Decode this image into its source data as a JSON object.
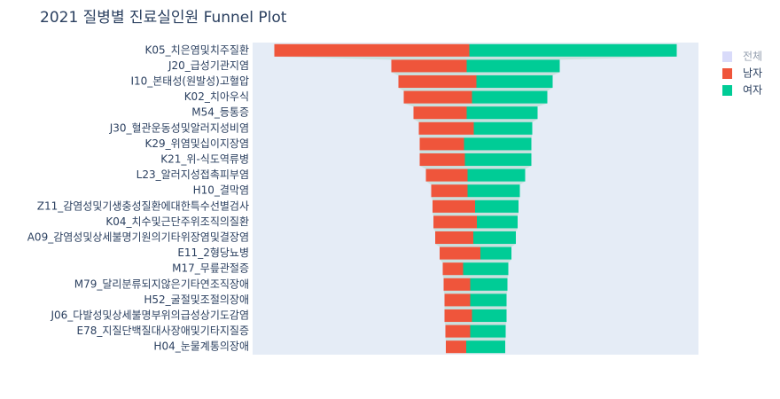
{
  "chart_data": {
    "type": "funnel",
    "title": "2021 질병별 진료실인원 Funnel Plot",
    "categories": [
      "K05_치은염및치주질환",
      "J20_급성기관지염",
      "I10_본태성(원발성)고혈압",
      "K02_치아우식",
      "M54_등통증",
      "J30_혈관운동성및알러지성비염",
      "K29_위염및십이지장염",
      "K21_위-식도역류병",
      "L23_알러지성접촉피부염",
      "H10_결막염",
      "Z11_감염성및기생충성질환에대한특수선별검사",
      "K04_치수및근단주위조직의질환",
      "A09_감염성및상세불명기원의기타위장염및결장염",
      "E11_2형당뇨병",
      "M17_무릎관절증",
      "M79_달리분류되지않은기타연조직장애",
      "H52_굴절및조절의장애",
      "J06_다발성및상세불명부위의급성상기도감염",
      "E78_지질단백질대사장애및기타지질증",
      "H04_눈물계통의장애"
    ],
    "series": [
      {
        "name": "전체",
        "color": "#b3b8f5",
        "visible": "legendonly"
      },
      {
        "name": "남자",
        "color": "#ef553b",
        "values": [
          220,
          85,
          88,
          77,
          60,
          62,
          50,
          51,
          47,
          41,
          48,
          49,
          43,
          46,
          23,
          30,
          29,
          31,
          28,
          23
        ]
      },
      {
        "name": "여자",
        "color": "#00cc96",
        "values": [
          234,
          105,
          86,
          85,
          80,
          66,
          76,
          75,
          65,
          59,
          49,
          46,
          48,
          35,
          51,
          42,
          41,
          39,
          40,
          44
        ]
      }
    ],
    "xlim": [
      -251.5,
      251.5
    ],
    "legend": "top-right"
  }
}
